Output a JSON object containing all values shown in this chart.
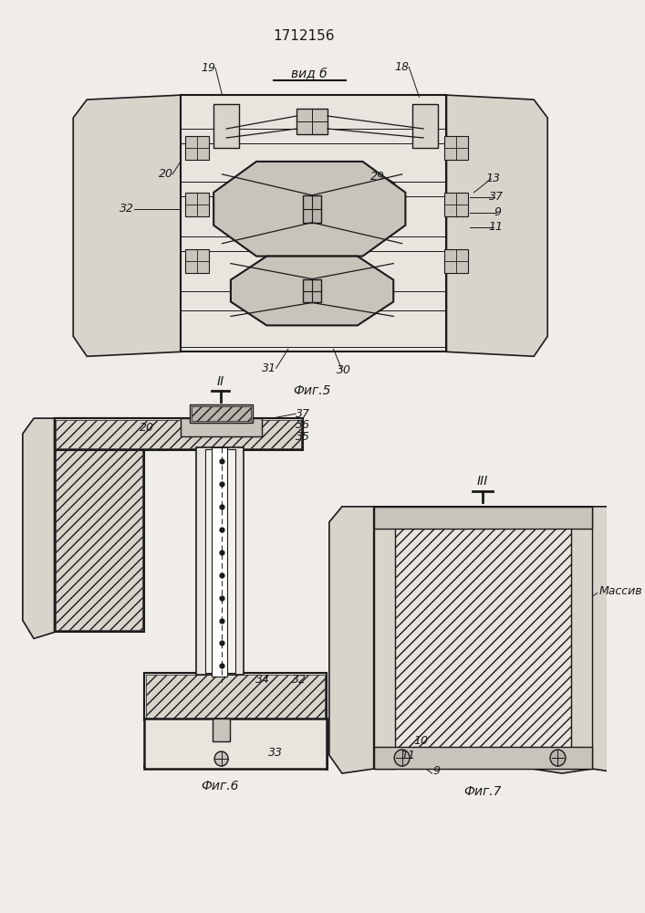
{
  "title": "1712156",
  "bg_color": "#f0ede8",
  "lc": "#1a1a1a",
  "gray1": "#d8d4cc",
  "gray2": "#c8c4bc",
  "gray3": "#b8b4ac",
  "gray4": "#e8e4de",
  "fig5_label": "вид б",
  "fig5_caption": "Фиг.5",
  "fig6_caption": "Фиг.6",
  "fig7_caption": "Фиг.7",
  "massiv": "Массив"
}
